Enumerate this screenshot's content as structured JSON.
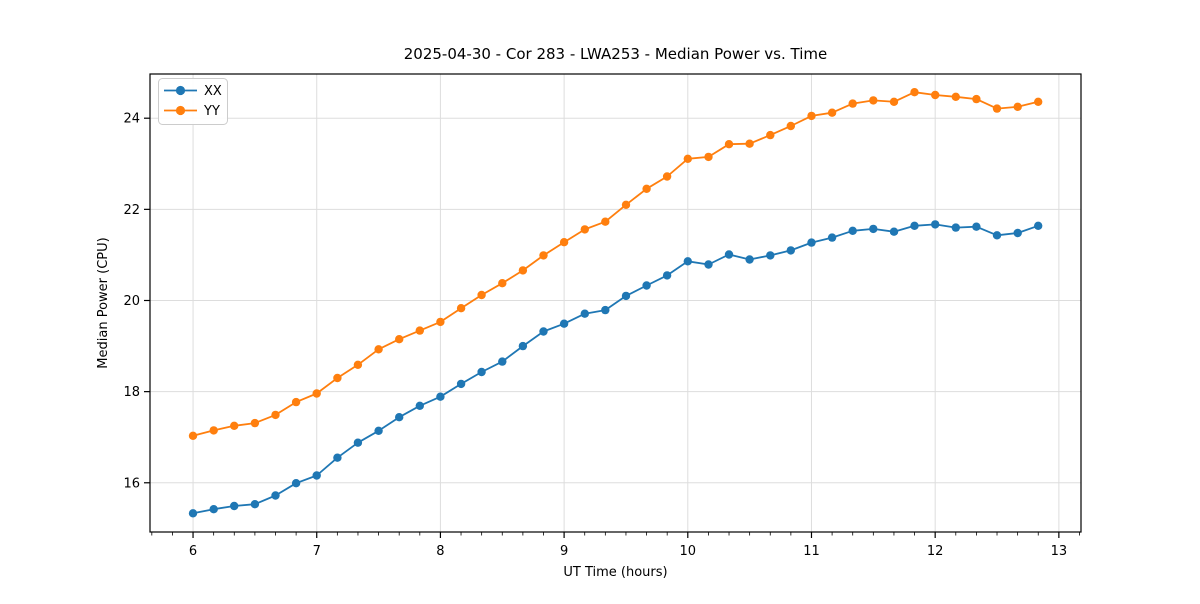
{
  "chart_data": {
    "type": "line",
    "title": "2025-04-30 - Cor 283 - LWA253 - Median Power vs. Time",
    "xlabel": "UT Time (hours)",
    "ylabel": "Median Power (CPU)",
    "xlim": [
      5.652,
      13.179
    ],
    "ylim": [
      14.92,
      24.97
    ],
    "xticks": [
      6,
      7,
      8,
      9,
      10,
      11,
      12,
      13
    ],
    "yticks": [
      16,
      18,
      20,
      22,
      24
    ],
    "minor_xtick_step": 0.1666667,
    "grid": true,
    "grid_color": "#dddddd",
    "legend_position": "upper-left",
    "marker": "o",
    "x": [
      6.0,
      6.167,
      6.333,
      6.5,
      6.667,
      6.833,
      7.0,
      7.167,
      7.333,
      7.5,
      7.667,
      7.833,
      8.0,
      8.167,
      8.333,
      8.5,
      8.667,
      8.833,
      9.0,
      9.167,
      9.333,
      9.5,
      9.667,
      9.833,
      10.0,
      10.167,
      10.333,
      10.5,
      10.667,
      10.833,
      11.0,
      11.167,
      11.333,
      11.5,
      11.667,
      11.833,
      12.0,
      12.167,
      12.333,
      12.5,
      12.667,
      12.833
    ],
    "series": [
      {
        "name": "XX",
        "color": "#1f77b4",
        "values": [
          15.33,
          15.42,
          15.49,
          15.53,
          15.72,
          15.99,
          16.16,
          16.55,
          16.88,
          17.14,
          17.44,
          17.69,
          17.89,
          18.17,
          18.43,
          18.66,
          19.0,
          19.32,
          19.49,
          19.71,
          19.79,
          20.1,
          20.33,
          20.55,
          20.86,
          20.79,
          21.01,
          20.9,
          20.99,
          21.1,
          21.27,
          21.38,
          21.53,
          21.57,
          21.51,
          21.64,
          21.67,
          21.6,
          21.62,
          21.43,
          21.48,
          21.64
        ]
      },
      {
        "name": "YY",
        "color": "#ff7f0e",
        "values": [
          17.03,
          17.15,
          17.25,
          17.31,
          17.49,
          17.77,
          17.96,
          18.3,
          18.59,
          18.93,
          19.15,
          19.34,
          19.53,
          19.83,
          20.12,
          20.38,
          20.66,
          20.99,
          21.28,
          21.56,
          21.73,
          22.1,
          22.45,
          22.72,
          23.11,
          23.15,
          23.43,
          23.44,
          23.63,
          23.83,
          24.05,
          24.12,
          24.32,
          24.39,
          24.36,
          24.57,
          24.51,
          24.47,
          24.42,
          24.21,
          24.25,
          24.36
        ]
      }
    ]
  }
}
